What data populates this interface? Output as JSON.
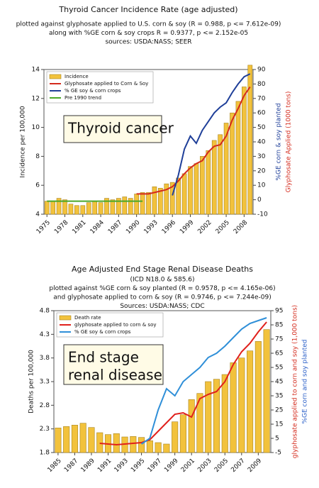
{
  "chart_data": [
    {
      "type": "bar",
      "title": "Thyroid Cancer Incidence Rate (age adjusted)",
      "subtitles": [
        "plotted against glyphosate applied to U.S. corn & soy (R = 0.988, p <= 7.612e-09)",
        "along with %GE corn & soy crops R = 0.9377, p <= 2.152e-05",
        "sources: USDA:NASS; SEER"
      ],
      "ylabel": "Incidence per 100,000",
      "y2label": [
        "%GE corn & soy planted",
        "Glyphosate Applied (1000 tons)"
      ],
      "y2label_colors": [
        "#1f3f99",
        "#d42a1c"
      ],
      "annotation": [
        "Thyroid cancer"
      ],
      "x": [
        1975,
        1976,
        1977,
        1978,
        1979,
        1980,
        1981,
        1982,
        1983,
        1984,
        1985,
        1986,
        1987,
        1988,
        1989,
        1990,
        1991,
        1992,
        1993,
        1994,
        1995,
        1996,
        1997,
        1998,
        1999,
        2000,
        2001,
        2002,
        2003,
        2004,
        2005,
        2006,
        2007,
        2008,
        2009
      ],
      "xlim": [
        1974.5,
        2009.5
      ],
      "xticks": [
        1975,
        1978,
        1981,
        1984,
        1987,
        1990,
        1993,
        1996,
        1999,
        2002,
        2005,
        2008
      ],
      "ylim": [
        4,
        14
      ],
      "yticks": [
        4,
        6,
        8,
        10,
        12,
        14
      ],
      "y2lim": [
        -10,
        90
      ],
      "y2ticks": [
        -10,
        0,
        10,
        20,
        30,
        40,
        50,
        60,
        70,
        80,
        90
      ],
      "legend": "upper left",
      "series": [
        {
          "name": "Incidence",
          "type": "bar",
          "color": "#f2c23c",
          "edgecolor": "#a88420",
          "values": [
            4.9,
            4.9,
            5.1,
            5.0,
            4.7,
            4.6,
            4.6,
            4.8,
            4.9,
            4.8,
            5.1,
            5.0,
            5.1,
            5.2,
            5.1,
            5.4,
            5.5,
            5.5,
            5.9,
            5.8,
            6.1,
            6.2,
            6.5,
            6.8,
            7.3,
            7.5,
            8.0,
            8.4,
            9.1,
            9.5,
            10.3,
            11.0,
            11.8,
            12.8,
            14.3
          ]
        },
        {
          "name": "Glyphosate applied to Corn & Soy",
          "type": "line",
          "axis": "y2",
          "color": "#d42a1c",
          "values": [
            null,
            null,
            null,
            null,
            null,
            null,
            null,
            null,
            null,
            null,
            null,
            null,
            null,
            null,
            null,
            4,
            4,
            4,
            5,
            6,
            7,
            9,
            13,
            18,
            22,
            25,
            27,
            33,
            37,
            38,
            44,
            55,
            63,
            72,
            78
          ]
        },
        {
          "name": "% GE soy & corn crops",
          "type": "line",
          "axis": "y2",
          "color": "#1f3f99",
          "values": [
            null,
            null,
            null,
            null,
            null,
            null,
            null,
            null,
            null,
            null,
            null,
            null,
            null,
            null,
            null,
            null,
            null,
            null,
            null,
            null,
            null,
            3,
            17,
            35,
            44,
            39,
            48,
            54,
            60,
            64,
            67,
            74,
            80,
            85,
            87
          ]
        },
        {
          "name": "Pre 1990 trend",
          "type": "line",
          "color": "#4aa82a",
          "values": [
            4.9,
            4.9,
            4.9,
            4.9,
            4.9,
            4.9,
            4.9,
            4.9,
            4.9,
            4.9,
            4.9,
            4.9,
            4.9,
            4.9,
            4.9,
            4.9,
            4.9,
            null,
            null,
            null,
            null,
            null,
            null,
            null,
            null,
            null,
            null,
            null,
            null,
            null,
            null,
            null,
            null,
            null,
            null
          ]
        }
      ]
    },
    {
      "type": "bar",
      "title": "Age Adjusted End Stage Renal Disease Deaths",
      "subtitles": [
        "(ICD N18.0 & 585.6)",
        "plotted against %GE corn & soy planted (R = 0.9578, p <= 4.165e-06)",
        "and glyphosate applied to corn & soy (R = 0.9746, p <= 7.244e-09)",
        "Sources: USDA:NASS; CDC"
      ],
      "ylabel": "Deaths per 100,000",
      "y2label": [
        "glyphosate applied to corn and soy (1,000 tons)",
        "%GE corn and soy planted"
      ],
      "y2label_colors": [
        "#d42a1c",
        "#2a5fc8"
      ],
      "annotation": [
        "End stage",
        "renal disease"
      ],
      "x": [
        1985,
        1986,
        1987,
        1988,
        1989,
        1990,
        1991,
        1992,
        1993,
        1994,
        1995,
        1996,
        1997,
        1998,
        1999,
        2000,
        2001,
        2002,
        2003,
        2004,
        2005,
        2006,
        2007,
        2008,
        2009,
        2010
      ],
      "xlim": [
        1984.5,
        2010.5
      ],
      "xticks": [
        1985,
        1987,
        1989,
        1991,
        1993,
        1995,
        1997,
        1999,
        2001,
        2003,
        2005,
        2007,
        2009
      ],
      "ylim": [
        1.8,
        4.8
      ],
      "yticks": [
        1.8,
        2.3,
        2.8,
        3.3,
        3.8,
        4.3,
        4.8
      ],
      "y2lim": [
        -5,
        95
      ],
      "y2ticks": [
        -5,
        5,
        15,
        25,
        35,
        45,
        55,
        65,
        75,
        85,
        95
      ],
      "legend": "upper left",
      "series": [
        {
          "name": "Death rate",
          "type": "bar",
          "color": "#f2c23c",
          "edgecolor": "#a88420",
          "values": [
            2.32,
            2.35,
            2.38,
            2.42,
            2.33,
            2.22,
            2.18,
            2.2,
            2.13,
            2.14,
            2.12,
            2.05,
            2.01,
            1.98,
            2.45,
            2.6,
            2.92,
            3.05,
            3.3,
            3.35,
            3.45,
            3.7,
            3.8,
            3.95,
            4.15,
            4.4
          ]
        },
        {
          "name": "glyphosate applied to corn & soy",
          "type": "line",
          "axis": "y2",
          "color": "#e0201c",
          "values": [
            null,
            null,
            null,
            null,
            null,
            1.5,
            1,
            0.5,
            1,
            1.5,
            2,
            4,
            10,
            16,
            22,
            23,
            20,
            33,
            36,
            38,
            45,
            57,
            66,
            72,
            80,
            87
          ]
        },
        {
          "name": "% GE soy & corn crops",
          "type": "line",
          "axis": "y2",
          "color": "#2f8fd8",
          "values": [
            null,
            null,
            null,
            null,
            null,
            null,
            null,
            null,
            null,
            null,
            1,
            5,
            25,
            40,
            35,
            45,
            50,
            55,
            62,
            65,
            70,
            76,
            82,
            86,
            88,
            90
          ]
        }
      ]
    }
  ]
}
